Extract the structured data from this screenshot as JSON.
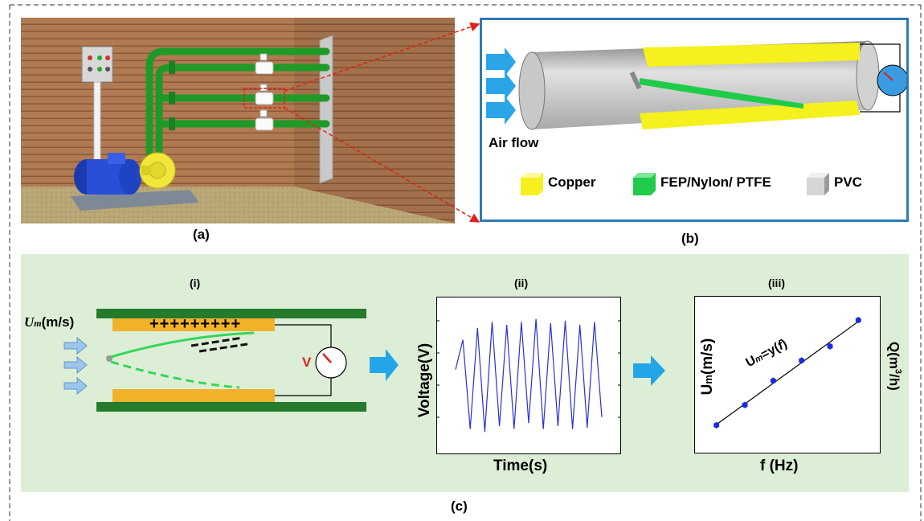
{
  "captions": {
    "a": "(a)",
    "b": "(b)",
    "c": "(c)"
  },
  "panel_b": {
    "air_flow_label": "Air flow",
    "legend": [
      {
        "label": "Copper",
        "color": "#f5f01e"
      },
      {
        "label": "FEP/Nylon/ PTFE",
        "color": "#1fcc4a"
      },
      {
        "label": "PVC",
        "color": "#cfcfcf"
      }
    ],
    "frame_color": "#2e7ab8"
  },
  "panel_c": {
    "background": "#ddeed6",
    "sub_labels": {
      "i": "(i)",
      "ii": "(ii)",
      "iii": "(iii)"
    },
    "velocity_label": "U",
    "velocity_sub": "m",
    "velocity_unit": "(m/s)",
    "charges": "+++++++++",
    "voltmeter_label": "V",
    "plot_ii": {
      "ylabel": "Voltage(V)",
      "xlabel": "Time(s)"
    },
    "plot_iii": {
      "ylabel_main": "U",
      "ylabel_sub": "m",
      "ylabel_unit": "(m/s)",
      "ylabel_right_pre": "Q(m",
      "ylabel_right_sup": "3",
      "ylabel_right_post": "/h)",
      "xlabel": "f (Hz)",
      "fit_label_main": "U",
      "fit_label_sub": "m",
      "fit_label_rest": "=y(",
      "fit_label_var": "f",
      "fit_label_end": ")"
    }
  },
  "chart_data": [
    {
      "type": "line",
      "title": "(ii)",
      "xlabel": "Time(s)",
      "ylabel": "Voltage(V)",
      "series": [
        {
          "values": [
            0.1,
            0.6,
            -0.9,
            0.8,
            -0.95,
            0.9,
            -0.85,
            0.85,
            -0.9,
            0.9,
            -0.8,
            0.95,
            -0.9,
            0.88,
            -0.85,
            0.92,
            -0.9,
            0.85,
            -0.88,
            0.9,
            -0.7
          ]
        }
      ],
      "color": "#2a2fd6"
    },
    {
      "type": "scatter",
      "title": "(iii)",
      "xlabel": "f (Hz)",
      "ylabel": "Um(m/s)",
      "x": [
        1,
        2,
        3,
        4,
        5,
        6
      ],
      "y": [
        1.0,
        2.0,
        3.2,
        4.2,
        4.9,
        6.2
      ],
      "fit": "linear",
      "color": "#1a2be0"
    }
  ]
}
